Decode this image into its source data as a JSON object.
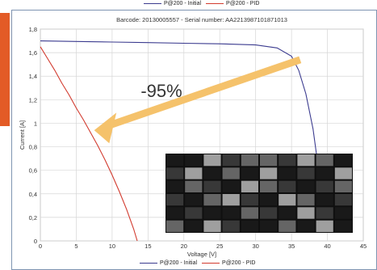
{
  "top_legend": [
    {
      "label": "P@200 - Initial",
      "color": "#3b3b8f"
    },
    {
      "label": "P@200 - PID",
      "color": "#d23b2f"
    }
  ],
  "bottom_legend": [
    {
      "label": "P@200 - Initial",
      "color": "#3b3b8f"
    },
    {
      "label": "P@200 - PID",
      "color": "#d23b2f"
    }
  ],
  "accent_color": "#e35b26",
  "arrow_color": "#f5c26b",
  "inset_image": "electroluminescence-module-image",
  "chart_data": {
    "type": "line",
    "title": "Barcode: 20130005557 - Serial number: AA2213987101871013",
    "xlabel": "Voltage [V]",
    "ylabel": "Current [A]",
    "xlim": [
      0,
      45
    ],
    "ylim": [
      0,
      1.8
    ],
    "xticks": [
      "0",
      "5",
      "10",
      "15",
      "20",
      "25",
      "30",
      "35",
      "40",
      "45"
    ],
    "yticks": [
      "0",
      "0,2",
      "0,4",
      "0,6",
      "0,8",
      "1",
      "1,2",
      "1,4",
      "1,6",
      "1,8"
    ],
    "grid": true,
    "annotation": "-95%",
    "series": [
      {
        "name": "P@200 - Initial",
        "color": "#3b3b8f",
        "x": [
          0,
          5,
          10,
          15,
          20,
          25,
          30,
          33,
          35,
          36,
          37,
          38,
          39,
          39.5
        ],
        "y": [
          1.7,
          1.695,
          1.69,
          1.685,
          1.68,
          1.675,
          1.665,
          1.64,
          1.57,
          1.45,
          1.25,
          0.95,
          0.5,
          0.25
        ]
      },
      {
        "name": "P@200 - PID",
        "color": "#d23b2f",
        "x": [
          0,
          1,
          2,
          3,
          4,
          5,
          6,
          7,
          8,
          9,
          10,
          11,
          12,
          13,
          13.5
        ],
        "y": [
          1.65,
          1.55,
          1.45,
          1.34,
          1.24,
          1.13,
          1.03,
          0.92,
          0.81,
          0.69,
          0.56,
          0.42,
          0.27,
          0.1,
          0.0
        ]
      }
    ]
  }
}
